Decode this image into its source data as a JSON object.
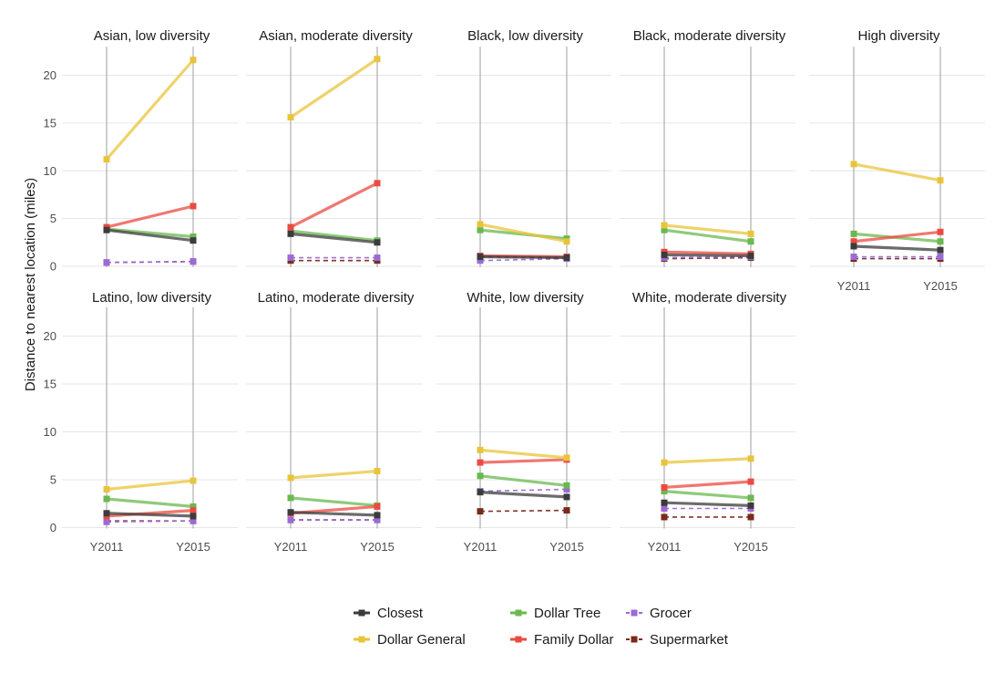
{
  "chart_data": {
    "type": "line",
    "ylabel": "Distance to nearest location (miles)",
    "xlabel": "",
    "x": [
      "Y2011",
      "Y2015"
    ],
    "ylim": [
      0,
      23
    ],
    "yticks": [
      0,
      5,
      10,
      15,
      20
    ],
    "grid": true,
    "legend_position": "bottom",
    "series_styles": [
      {
        "name": "Closest",
        "color": "#3b3b3b",
        "dash": "solid"
      },
      {
        "name": "Dollar Tree",
        "color": "#6ab84f",
        "dash": "solid"
      },
      {
        "name": "Grocer",
        "color": "#9b6ad6",
        "dash": "dashed"
      },
      {
        "name": "Dollar General",
        "color": "#e8c43a",
        "dash": "solid"
      },
      {
        "name": "Family Dollar",
        "color": "#ec4a40",
        "dash": "solid"
      },
      {
        "name": "Supermarket",
        "color": "#7a2a1a",
        "dash": "dashed"
      }
    ],
    "legend_order": [
      "Closest",
      "Dollar Tree",
      "Grocer",
      "Dollar General",
      "Family Dollar",
      "Supermarket"
    ],
    "facets": [
      {
        "title": "Asian, low diversity",
        "series": [
          {
            "name": "Dollar General",
            "values": [
              11.2,
              21.6
            ]
          },
          {
            "name": "Family Dollar",
            "values": [
              4.1,
              6.3
            ]
          },
          {
            "name": "Dollar Tree",
            "values": [
              3.9,
              3.1
            ]
          },
          {
            "name": "Closest",
            "values": [
              3.8,
              2.7
            ]
          },
          {
            "name": "Grocer",
            "values": [
              0.4,
              0.5
            ]
          },
          {
            "name": "Supermarket",
            "values": [
              0.4,
              0.5
            ]
          }
        ]
      },
      {
        "title": "Asian, moderate diversity",
        "series": [
          {
            "name": "Dollar General",
            "values": [
              15.6,
              21.7
            ]
          },
          {
            "name": "Family Dollar",
            "values": [
              4.1,
              8.7
            ]
          },
          {
            "name": "Dollar Tree",
            "values": [
              3.7,
              2.7
            ]
          },
          {
            "name": "Closest",
            "values": [
              3.4,
              2.5
            ]
          },
          {
            "name": "Grocer",
            "values": [
              0.9,
              0.9
            ]
          },
          {
            "name": "Supermarket",
            "values": [
              0.6,
              0.6
            ]
          }
        ]
      },
      {
        "title": "Black, low diversity",
        "series": [
          {
            "name": "Dollar General",
            "values": [
              4.4,
              2.6
            ]
          },
          {
            "name": "Dollar Tree",
            "values": [
              3.8,
              2.9
            ]
          },
          {
            "name": "Family Dollar",
            "values": [
              1.1,
              1.0
            ]
          },
          {
            "name": "Closest",
            "values": [
              1.0,
              0.9
            ]
          },
          {
            "name": "Supermarket",
            "values": [
              1.0,
              0.9
            ]
          },
          {
            "name": "Grocer",
            "values": [
              0.6,
              0.8
            ]
          }
        ]
      },
      {
        "title": "Black, moderate diversity",
        "series": [
          {
            "name": "Dollar General",
            "values": [
              4.3,
              3.4
            ]
          },
          {
            "name": "Dollar Tree",
            "values": [
              3.8,
              2.6
            ]
          },
          {
            "name": "Family Dollar",
            "values": [
              1.5,
              1.3
            ]
          },
          {
            "name": "Closest",
            "values": [
              1.2,
              1.1
            ]
          },
          {
            "name": "Grocer",
            "values": [
              0.9,
              1.0
            ]
          },
          {
            "name": "Supermarket",
            "values": [
              0.8,
              0.9
            ]
          }
        ]
      },
      {
        "title": "High diversity",
        "series": [
          {
            "name": "Dollar General",
            "values": [
              10.7,
              9.0
            ]
          },
          {
            "name": "Family Dollar",
            "values": [
              2.6,
              3.6
            ]
          },
          {
            "name": "Dollar Tree",
            "values": [
              3.4,
              2.6
            ]
          },
          {
            "name": "Closest",
            "values": [
              2.1,
              1.7
            ]
          },
          {
            "name": "Grocer",
            "values": [
              1.0,
              1.0
            ]
          },
          {
            "name": "Supermarket",
            "values": [
              0.8,
              0.8
            ]
          }
        ]
      },
      {
        "title": "Latino, low diversity",
        "series": [
          {
            "name": "Dollar General",
            "values": [
              4.0,
              4.9
            ]
          },
          {
            "name": "Dollar Tree",
            "values": [
              3.0,
              2.2
            ]
          },
          {
            "name": "Family Dollar",
            "values": [
              1.2,
              1.8
            ]
          },
          {
            "name": "Closest",
            "values": [
              1.5,
              1.2
            ]
          },
          {
            "name": "Grocer",
            "values": [
              0.6,
              0.7
            ]
          },
          {
            "name": "Supermarket",
            "values": [
              0.7,
              0.7
            ]
          }
        ]
      },
      {
        "title": "Latino, moderate diversity",
        "series": [
          {
            "name": "Dollar General",
            "values": [
              5.2,
              5.9
            ]
          },
          {
            "name": "Dollar Tree",
            "values": [
              3.1,
              2.3
            ]
          },
          {
            "name": "Family Dollar",
            "values": [
              1.5,
              2.2
            ]
          },
          {
            "name": "Closest",
            "values": [
              1.6,
              1.3
            ]
          },
          {
            "name": "Grocer",
            "values": [
              0.8,
              0.8
            ]
          },
          {
            "name": "Supermarket",
            "values": [
              0.8,
              0.8
            ]
          }
        ]
      },
      {
        "title": "White, low diversity",
        "series": [
          {
            "name": "Dollar General",
            "values": [
              8.1,
              7.3
            ]
          },
          {
            "name": "Family Dollar",
            "values": [
              6.8,
              7.1
            ]
          },
          {
            "name": "Dollar Tree",
            "values": [
              5.4,
              4.4
            ]
          },
          {
            "name": "Grocer",
            "values": [
              3.8,
              4.0
            ]
          },
          {
            "name": "Closest",
            "values": [
              3.7,
              3.2
            ]
          },
          {
            "name": "Supermarket",
            "values": [
              1.7,
              1.8
            ]
          }
        ]
      },
      {
        "title": "White, moderate diversity",
        "series": [
          {
            "name": "Dollar General",
            "values": [
              6.8,
              7.2
            ]
          },
          {
            "name": "Family Dollar",
            "values": [
              4.2,
              4.8
            ]
          },
          {
            "name": "Dollar Tree",
            "values": [
              3.8,
              3.1
            ]
          },
          {
            "name": "Closest",
            "values": [
              2.6,
              2.3
            ]
          },
          {
            "name": "Grocer",
            "values": [
              2.0,
              2.0
            ]
          },
          {
            "name": "Supermarket",
            "values": [
              1.1,
              1.1
            ]
          }
        ]
      }
    ]
  }
}
